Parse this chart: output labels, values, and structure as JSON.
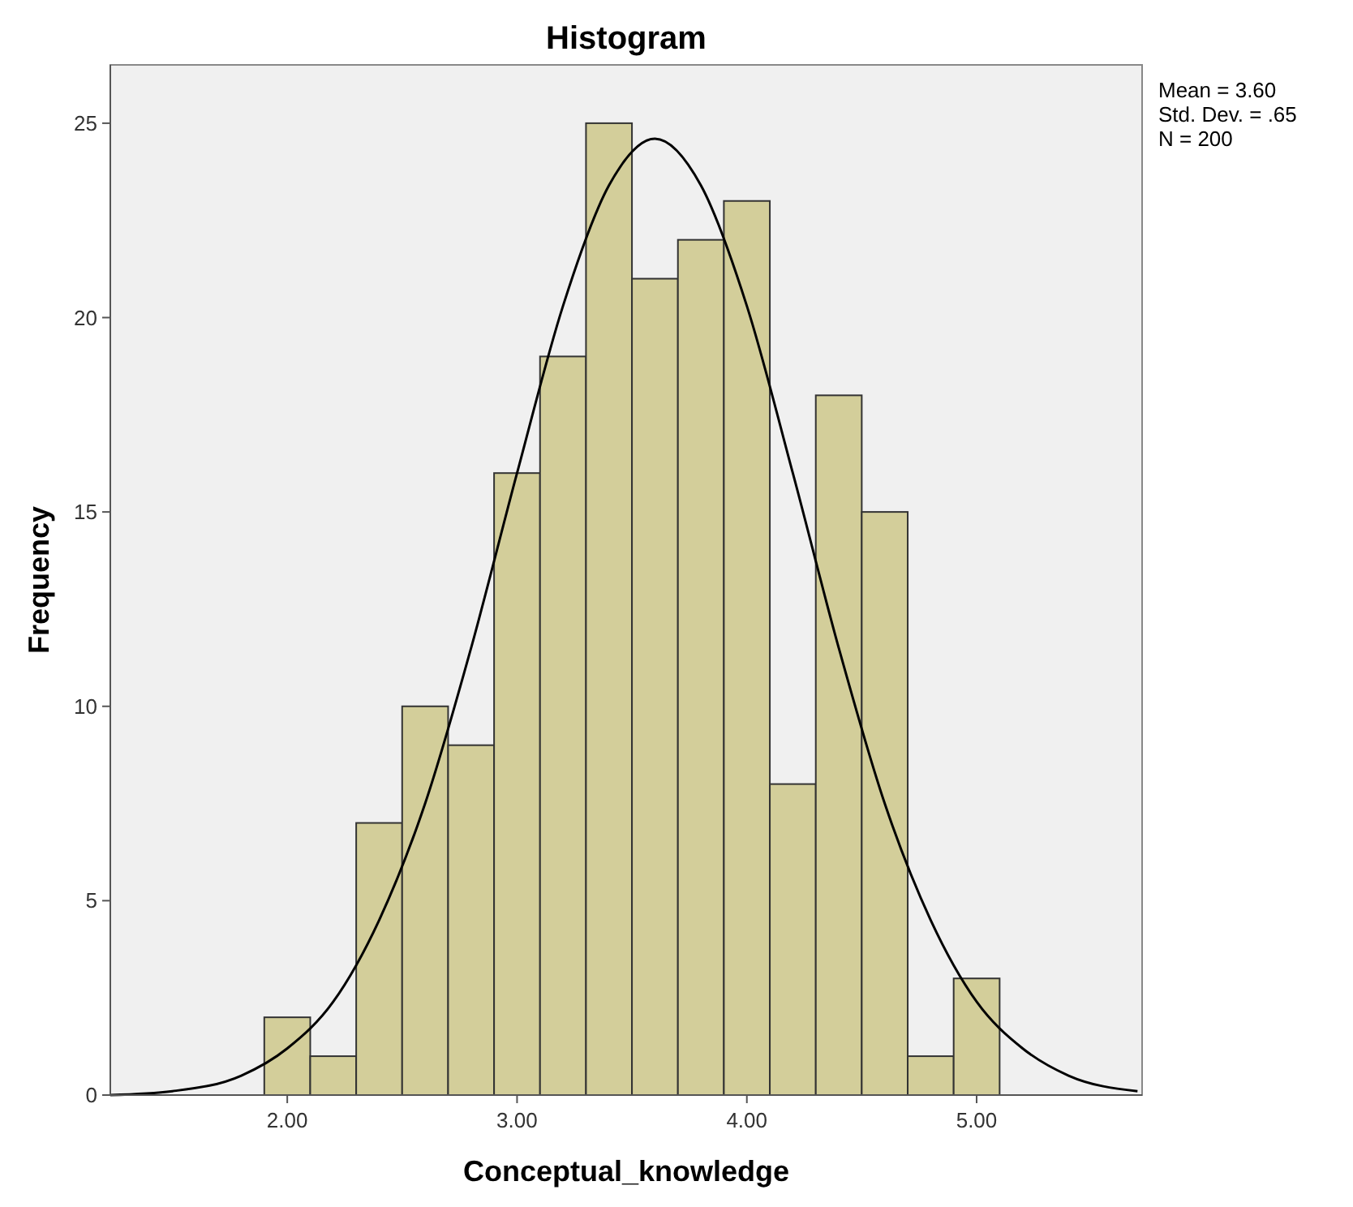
{
  "chart_data": {
    "type": "histogram",
    "title": "Histogram",
    "xlabel": "Conceptual_knowledge",
    "ylabel": "Frequency",
    "bins": [
      1.9,
      2.1,
      2.3,
      2.5,
      2.7,
      2.9,
      3.1,
      3.3,
      3.5,
      3.7,
      3.9,
      4.1,
      4.3,
      4.5,
      4.7,
      4.9,
      5.1
    ],
    "values": [
      2,
      1,
      7,
      10,
      9,
      16,
      19,
      25,
      21,
      22,
      23,
      8,
      18,
      15,
      1,
      3
    ],
    "color": "#d3ce9a",
    "series": [
      {
        "type": "line",
        "color": "#000000",
        "x": [
          1.23,
          1.5,
          1.8,
          2.0,
          2.2,
          2.4,
          2.6,
          2.8,
          3.0,
          3.2,
          3.4,
          3.6,
          3.8,
          4.0,
          4.2,
          4.4,
          4.6,
          4.8,
          5.0,
          5.2,
          5.4,
          5.7
        ],
        "values": [
          0.0,
          0.1,
          0.5,
          1.2,
          2.4,
          4.5,
          7.5,
          11.5,
          16.0,
          20.3,
          23.4,
          24.6,
          23.4,
          20.3,
          16.0,
          11.5,
          7.5,
          4.5,
          2.4,
          1.2,
          0.5,
          0.1
        ]
      }
    ],
    "xlim": [
      1.23,
      5.72
    ],
    "ylim": [
      0,
      26.5
    ],
    "xticks": [
      {
        "value": 2,
        "label": "2.00"
      },
      {
        "value": 3,
        "label": "3.00"
      },
      {
        "value": 4,
        "label": "4.00"
      },
      {
        "value": 5,
        "label": "5.00"
      }
    ],
    "yticks": [
      0,
      5,
      10,
      15,
      20,
      25
    ],
    "grid": false,
    "annotations": [
      "Mean = 3.60",
      "Std. Dev. = .65",
      "N = 200"
    ]
  }
}
